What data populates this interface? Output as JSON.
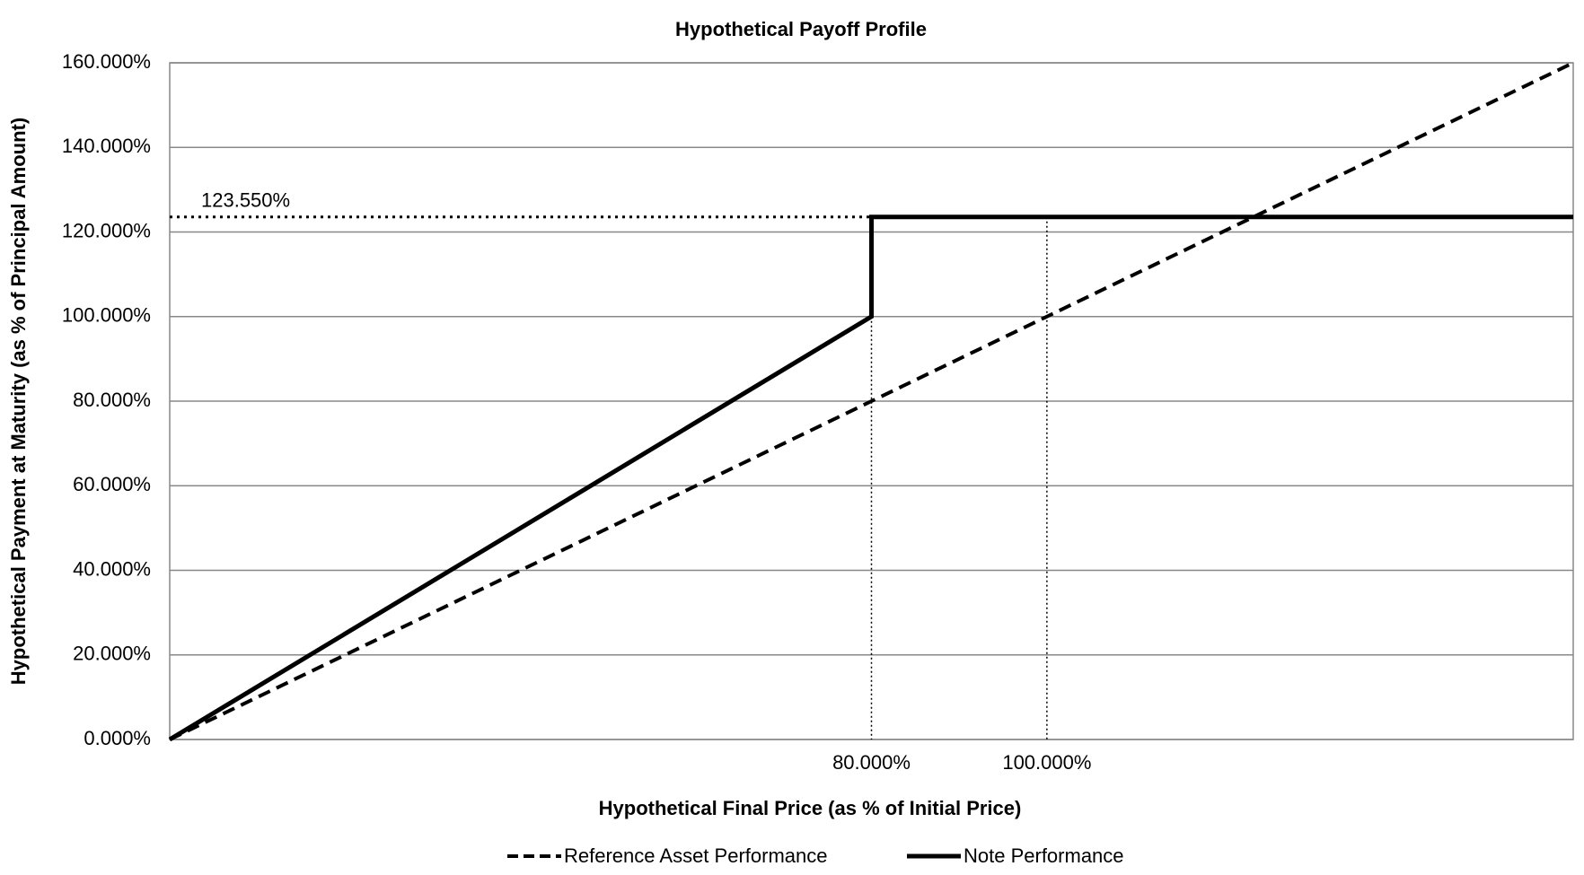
{
  "chart_data": {
    "type": "line",
    "title": "Hypothetical Payoff Profile",
    "x_label": "Hypothetical  Final Price (as %  of Initial Price)",
    "y_label": "Hypothetical Payment at Maturity  (as % of Principal Amount)",
    "xlim": [
      0,
      160
    ],
    "xticks": [
      {
        "value": 80,
        "label": "80.000%"
      },
      {
        "value": 100,
        "label": "100.000%"
      }
    ],
    "ylim": [
      0,
      160
    ],
    "yticks": [
      {
        "value": 0,
        "label": "0.000%"
      },
      {
        "value": 20,
        "label": "20.000%"
      },
      {
        "value": 40,
        "label": "40.000%"
      },
      {
        "value": 60,
        "label": "60.000%"
      },
      {
        "value": 80,
        "label": "80.000%"
      },
      {
        "value": 100,
        "label": "100.000%"
      },
      {
        "value": 120,
        "label": "120.000%"
      },
      {
        "value": 140,
        "label": "140.000%"
      },
      {
        "value": 160,
        "label": "160.000%"
      }
    ],
    "grid": true,
    "series": [
      {
        "name": "Reference Asset Performance",
        "color": "#000000",
        "style": "dashed",
        "x": [
          0,
          160
        ],
        "values": [
          0,
          160
        ]
      },
      {
        "name": "Note Performance",
        "color": "#000000",
        "style": "solid",
        "x": [
          0,
          80,
          80,
          160
        ],
        "values": [
          0,
          100,
          123.55,
          123.55
        ]
      }
    ],
    "annotation": {
      "text": "123.550%",
      "value": 123.55
    },
    "drop_lines": [
      {
        "x": 80,
        "y": 100
      },
      {
        "x": 100,
        "y": 123.55
      }
    ],
    "legend": "bottom"
  }
}
